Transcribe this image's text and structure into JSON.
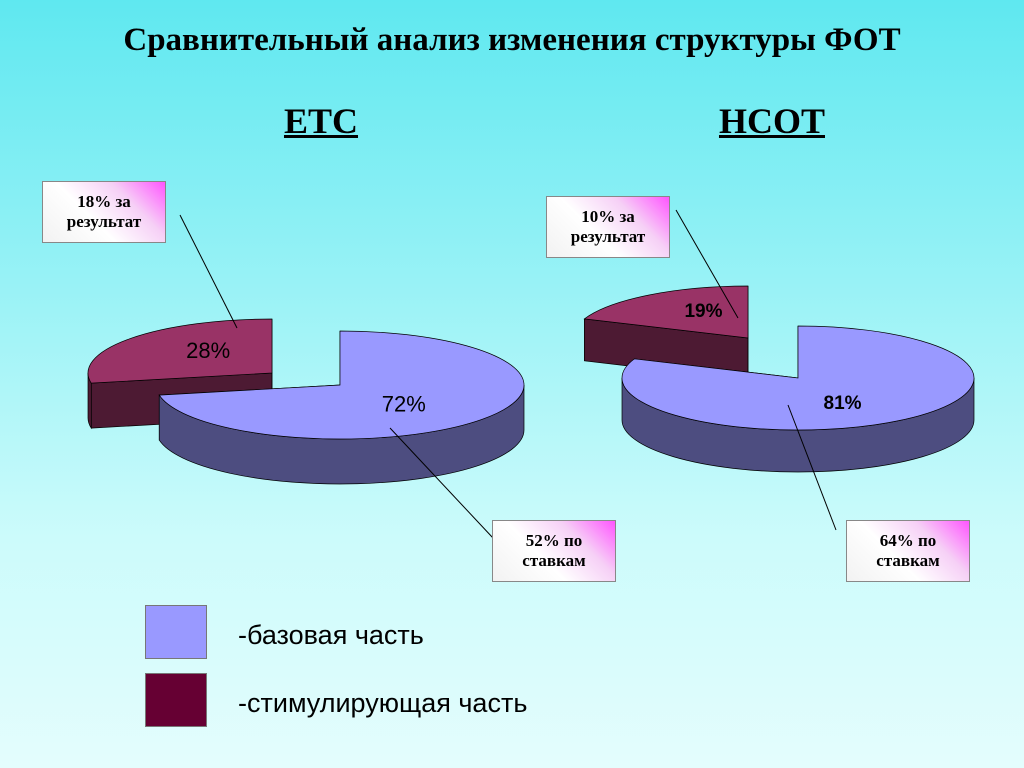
{
  "title": "Сравнительный анализ изменения структуры ФОТ",
  "legend": [
    {
      "label": "-базовая часть",
      "color": "#9999ff"
    },
    {
      "label": "-стимулирующая часть",
      "color": "#660033"
    }
  ],
  "chart_data": [
    {
      "type": "pie",
      "title": "ЕТС",
      "values": [
        72,
        28
      ],
      "value_labels": [
        "72%",
        "28%"
      ],
      "colors": [
        "#9999ff",
        "#993366"
      ],
      "annotations": [
        "52% по ставкам",
        "18% за результат"
      ]
    },
    {
      "type": "pie",
      "title": "НСОТ",
      "values": [
        81,
        19
      ],
      "value_labels": [
        "81%",
        "19%"
      ],
      "colors": [
        "#9999ff",
        "#993366"
      ],
      "annotations": [
        "64% по ставкам",
        "10% за результат"
      ]
    }
  ]
}
